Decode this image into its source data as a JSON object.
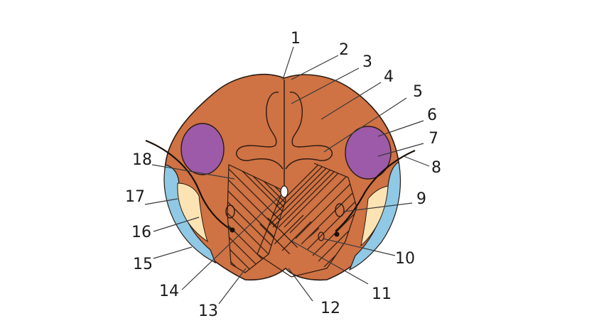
{
  "labels": [
    "1",
    "2",
    "3",
    "4",
    "5",
    "6",
    "7",
    "8",
    "9",
    "10",
    "11",
    "12",
    "13",
    "14",
    "15",
    "16",
    "17",
    "18"
  ],
  "colors": {
    "tissue": "#cf7244",
    "tissue_outline": "#2a1a12",
    "purple_nucleus": "#9d5aa8",
    "blue_region": "#8fc9e6",
    "cream_region": "#fbe3b4",
    "hatching": "#2b1a10",
    "text": "#1a1a1a"
  }
}
